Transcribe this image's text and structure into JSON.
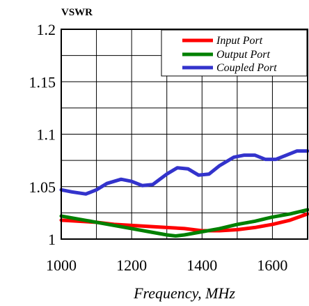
{
  "chart_data": {
    "type": "line",
    "title": "VSWR",
    "xlabel": "Frequency, MHz",
    "ylabel": "",
    "xlim": [
      1000,
      1700
    ],
    "ylim": [
      1.0,
      1.2
    ],
    "xticks": [
      1000,
      1200,
      1400,
      1600
    ],
    "xtick_labels": [
      "1000",
      "1200",
      "1400",
      "1600"
    ],
    "yticks": [
      1.0,
      1.05,
      1.1,
      1.15,
      1.2
    ],
    "ytick_labels": [
      "1",
      "1.05",
      "1.1",
      "1.15",
      "1.2"
    ],
    "grid": true,
    "legend_position": "top-right",
    "series": [
      {
        "name": "Input Port",
        "color": "#ff0000",
        "x": [
          1000,
          1050,
          1100,
          1150,
          1200,
          1250,
          1300,
          1350,
          1400,
          1450,
          1500,
          1550,
          1600,
          1650,
          1700
        ],
        "y": [
          1.018,
          1.017,
          1.016,
          1.014,
          1.013,
          1.012,
          1.011,
          1.01,
          1.008,
          1.008,
          1.009,
          1.011,
          1.014,
          1.018,
          1.024
        ]
      },
      {
        "name": "Output Port",
        "color": "#008000",
        "x": [
          1000,
          1050,
          1100,
          1150,
          1200,
          1250,
          1300,
          1325,
          1350,
          1400,
          1450,
          1500,
          1550,
          1600,
          1650,
          1700
        ],
        "y": [
          1.022,
          1.019,
          1.016,
          1.013,
          1.01,
          1.007,
          1.004,
          1.003,
          1.004,
          1.007,
          1.01,
          1.014,
          1.017,
          1.021,
          1.024,
          1.028
        ]
      },
      {
        "name": "Coupled Port",
        "color": "#3333cc",
        "x": [
          1000,
          1030,
          1070,
          1100,
          1130,
          1170,
          1200,
          1230,
          1260,
          1300,
          1330,
          1360,
          1390,
          1420,
          1450,
          1490,
          1520,
          1550,
          1580,
          1610,
          1640,
          1670,
          1700
        ],
        "y": [
          1.047,
          1.045,
          1.043,
          1.047,
          1.053,
          1.057,
          1.055,
          1.051,
          1.052,
          1.062,
          1.068,
          1.067,
          1.061,
          1.062,
          1.07,
          1.078,
          1.08,
          1.08,
          1.076,
          1.076,
          1.08,
          1.084,
          1.084
        ]
      }
    ]
  }
}
